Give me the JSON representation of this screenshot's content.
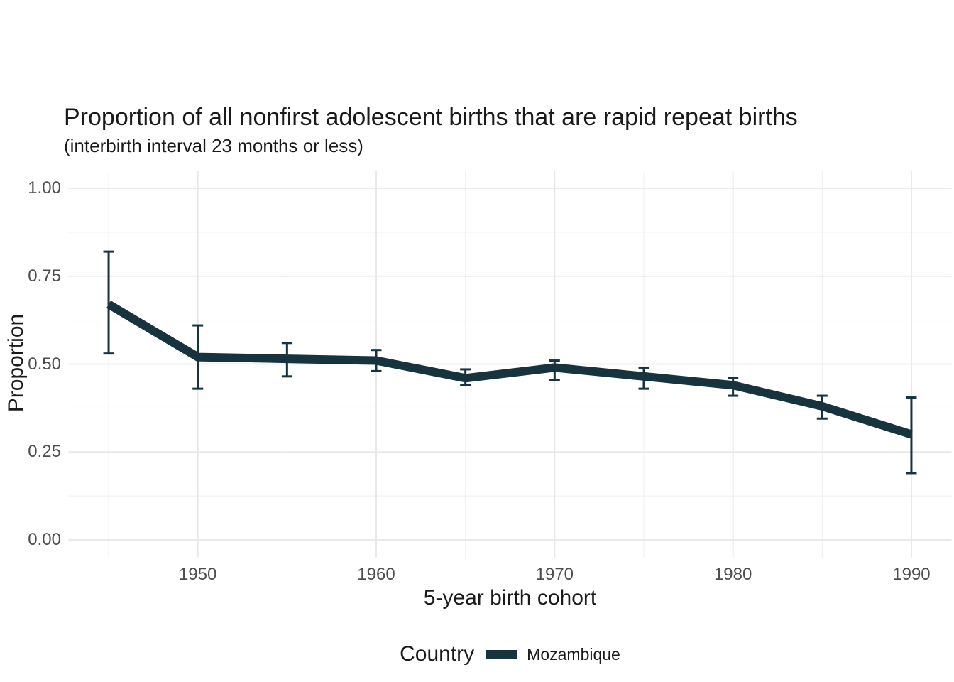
{
  "chart_data": {
    "type": "line",
    "title": "Proportion of all nonfirst adolescent births that are rapid repeat births",
    "subtitle": "(interbirth interval 23 months or less)",
    "xlabel": "5-year birth cohort",
    "ylabel": "Proportion",
    "legend_title": "Country",
    "legend_position": "bottom",
    "grid": true,
    "background_color": "#FFFFFF",
    "grid_major_color": "#E7E7E7",
    "grid_minor_color": "#EFEFEF",
    "tick_text_color": "#4D4D4D",
    "text_color": "#1A1A1A",
    "xlim": [
      1945,
      1990
    ],
    "ylim": [
      0,
      1
    ],
    "x_ticks": [
      {
        "value": 1950,
        "label": "1950"
      },
      {
        "value": 1960,
        "label": "1960"
      },
      {
        "value": 1970,
        "label": "1970"
      },
      {
        "value": 1980,
        "label": "1980"
      },
      {
        "value": 1990,
        "label": "1990"
      }
    ],
    "y_ticks": [
      {
        "value": 0.0,
        "label": "0.00"
      },
      {
        "value": 0.25,
        "label": "0.25"
      },
      {
        "value": 0.5,
        "label": "0.50"
      },
      {
        "value": 0.75,
        "label": "0.75"
      },
      {
        "value": 1.0,
        "label": "1.00"
      }
    ],
    "x_minor": [
      1945,
      1955,
      1965,
      1975,
      1985
    ],
    "y_minor": [
      0.125,
      0.375,
      0.625,
      0.875
    ],
    "series": [
      {
        "name": "Mozambique",
        "color": "#16333E",
        "points": [
          {
            "x": 1945,
            "y": 0.67,
            "ci_low": 0.53,
            "ci_high": 0.82
          },
          {
            "x": 1950,
            "y": 0.52,
            "ci_low": 0.43,
            "ci_high": 0.61
          },
          {
            "x": 1955,
            "y": 0.515,
            "ci_low": 0.465,
            "ci_high": 0.56
          },
          {
            "x": 1960,
            "y": 0.51,
            "ci_low": 0.48,
            "ci_high": 0.54
          },
          {
            "x": 1965,
            "y": 0.46,
            "ci_low": 0.44,
            "ci_high": 0.485
          },
          {
            "x": 1970,
            "y": 0.49,
            "ci_low": 0.455,
            "ci_high": 0.51
          },
          {
            "x": 1975,
            "y": 0.465,
            "ci_low": 0.43,
            "ci_high": 0.49
          },
          {
            "x": 1980,
            "y": 0.44,
            "ci_low": 0.41,
            "ci_high": 0.46
          },
          {
            "x": 1985,
            "y": 0.38,
            "ci_low": 0.345,
            "ci_high": 0.41
          },
          {
            "x": 1990,
            "y": 0.3,
            "ci_low": 0.19,
            "ci_high": 0.405
          }
        ]
      }
    ]
  },
  "legend": {
    "title": "Country",
    "items": [
      {
        "label": "Mozambique",
        "color": "#16333E"
      }
    ]
  }
}
